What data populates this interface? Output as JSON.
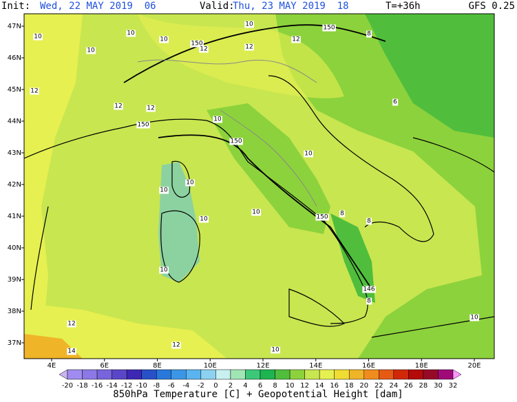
{
  "header": {
    "init_label": "Init:",
    "init": "Wed, 22 MAY 2019  06",
    "valid_label": "Valid:",
    "valid": "Thu, 23 MAY 2019  18",
    "lead": "T=+36h",
    "model": "GFS 0.25"
  },
  "lat_labels": [
    "47N",
    "46N",
    "45N",
    "44N",
    "43N",
    "42N",
    "41N",
    "40N",
    "39N",
    "38N",
    "37N"
  ],
  "lon_labels": [
    "4E",
    "6E",
    "8E",
    "10E",
    "12E",
    "14E",
    "16E",
    "18E",
    "20E"
  ],
  "map_labels": [
    "10",
    "10",
    "10",
    "10",
    "10",
    "150",
    "8",
    "150",
    "12",
    "12",
    "12",
    "6",
    "12",
    "12",
    "12",
    "150",
    "10",
    "150",
    "10",
    "10",
    "10",
    "10",
    "10",
    "150",
    "8",
    "8",
    "10",
    "146",
    "8",
    "10",
    "12",
    "12",
    "10",
    "14"
  ],
  "colorbar": {
    "ticks": [
      -20,
      -18,
      -16,
      -14,
      -12,
      -10,
      -8,
      -6,
      -4,
      -2,
      0,
      2,
      4,
      6,
      8,
      10,
      12,
      14,
      16,
      18,
      20,
      22,
      24,
      26,
      28,
      30,
      32
    ],
    "colors": [
      "#c8b4f0",
      "#a08cf0",
      "#8c78e6",
      "#7864dc",
      "#5a46c8",
      "#3c28b4",
      "#2850c8",
      "#2878dc",
      "#3c96e6",
      "#5ab4f0",
      "#8cd2f0",
      "#c8f0f0",
      "#a0e6b4",
      "#3cc878",
      "#1eb450",
      "#50be3c",
      "#8cd23c",
      "#c8e650",
      "#e6f050",
      "#f0dc32",
      "#f0b428",
      "#f08c1e",
      "#e65a14",
      "#d2280a",
      "#b40a0a",
      "#960a28",
      "#a00a78",
      "#dc1edc",
      "#ff96ff"
    ],
    "title": "850hPa Temperature [C] + Geopotential Height [dam]"
  }
}
